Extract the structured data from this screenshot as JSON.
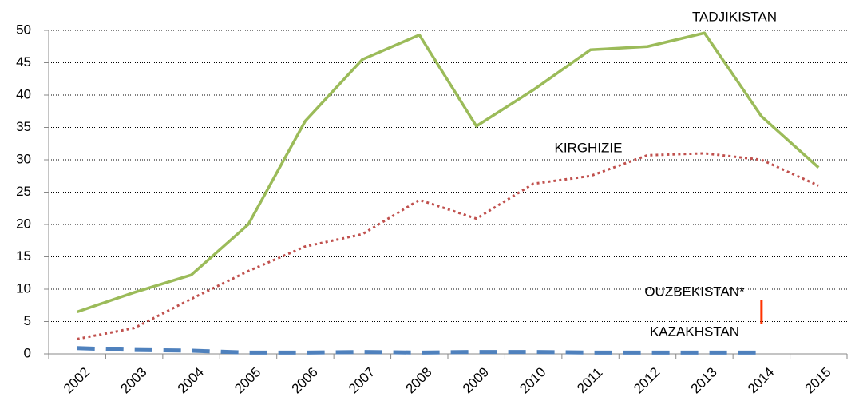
{
  "chart_data": {
    "type": "line",
    "categories": [
      "2002",
      "2003",
      "2004",
      "2005",
      "2006",
      "2007",
      "2008",
      "2009",
      "2010",
      "2011",
      "2012",
      "2013",
      "2014",
      "2015"
    ],
    "series": [
      {
        "name": "TADJIKISTAN",
        "color": "#9bbb59",
        "style": "solid",
        "values": [
          6.5,
          9.5,
          12.2,
          20,
          36,
          45.5,
          49.3,
          35.2,
          40.8,
          47,
          47.5,
          49.6,
          36.7,
          28.8
        ]
      },
      {
        "name": "KIRGHIZIE",
        "color": "#c0504d",
        "style": "dotted",
        "values": [
          2.3,
          4,
          8.5,
          12.8,
          16.6,
          18.5,
          23.8,
          20.9,
          26.3,
          27.5,
          30.7,
          31,
          30,
          26
        ]
      },
      {
        "name": "OUZBEKISTAN*",
        "color": "#ff3300",
        "style": "marker",
        "values": [
          null,
          null,
          null,
          null,
          null,
          null,
          null,
          null,
          null,
          null,
          null,
          null,
          6.5,
          null
        ]
      },
      {
        "name": "KAZAKHSTAN",
        "color": "#4f81bd",
        "style": "dashed",
        "values": [
          0.9,
          0.6,
          0.5,
          0.2,
          0.2,
          0.3,
          0.2,
          0.3,
          0.3,
          0.2,
          0.2,
          0.2,
          0.2,
          null
        ]
      }
    ],
    "ylim": [
      0,
      50
    ],
    "yticks": [
      0,
      5,
      10,
      15,
      20,
      25,
      30,
      35,
      40,
      45,
      50
    ],
    "grid": true
  }
}
